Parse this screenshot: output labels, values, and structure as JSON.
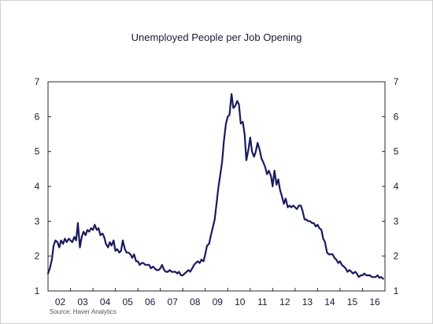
{
  "chart_data": {
    "type": "line",
    "title": "Unemployed People per Job Opening",
    "source": "Source:   Haver Analytics",
    "xlabel": "",
    "ylabel": "",
    "ylim": [
      1,
      7
    ],
    "yticks": [
      "1",
      "2",
      "3",
      "4",
      "5",
      "6",
      "7"
    ],
    "y_axes": "both",
    "grid": false,
    "legend": "none",
    "line_color": "#1a1a5e",
    "xlim": [
      2001,
      2016
    ],
    "xticks": [
      {
        "label": "02",
        "x": 2002
      },
      {
        "label": "03",
        "x": 2003
      },
      {
        "label": "04",
        "x": 2004
      },
      {
        "label": "05",
        "x": 2005
      },
      {
        "label": "06",
        "x": 2006
      },
      {
        "label": "07",
        "x": 2007
      },
      {
        "label": "08",
        "x": 2008
      },
      {
        "label": "09",
        "x": 2009
      },
      {
        "label": "10",
        "x": 2010
      },
      {
        "label": "11",
        "x": 2011
      },
      {
        "label": "12",
        "x": 2012
      },
      {
        "label": "13",
        "x": 2013
      },
      {
        "label": "14",
        "x": 2014
      },
      {
        "label": "15",
        "x": 2015
      },
      {
        "label": "16",
        "x": 2016
      }
    ],
    "series": [
      {
        "x": [
          2001.0,
          2001.08,
          2001.17,
          2001.25,
          2001.33,
          2001.42,
          2001.5,
          2001.58,
          2001.67,
          2001.75,
          2001.83,
          2001.92,
          2002.0,
          2002.08,
          2002.17,
          2002.25,
          2002.33,
          2002.42,
          2002.5,
          2002.58,
          2002.67,
          2002.75,
          2002.83,
          2002.92,
          2003.0,
          2003.08,
          2003.17,
          2003.25,
          2003.33,
          2003.42,
          2003.5,
          2003.58,
          2003.67,
          2003.75,
          2003.83,
          2003.92,
          2004.0,
          2004.08,
          2004.17,
          2004.25,
          2004.33,
          2004.42,
          2004.5,
          2004.58,
          2004.67,
          2004.75,
          2004.83,
          2004.92,
          2005.0,
          2005.08,
          2005.17,
          2005.25,
          2005.33,
          2005.42,
          2005.5,
          2005.58,
          2005.67,
          2005.75,
          2005.83,
          2005.92,
          2006.0,
          2006.08,
          2006.17,
          2006.25,
          2006.33,
          2006.42,
          2006.5,
          2006.58,
          2006.67,
          2006.75,
          2006.83,
          2006.92,
          2007.0,
          2007.08,
          2007.17,
          2007.25,
          2007.33,
          2007.42,
          2007.5,
          2007.58,
          2007.67,
          2007.75,
          2007.83,
          2007.92,
          2008.0,
          2008.08,
          2008.17,
          2008.25,
          2008.33,
          2008.42,
          2008.5,
          2008.58,
          2008.67,
          2008.75,
          2008.83,
          2008.92,
          2009.0,
          2009.08,
          2009.17,
          2009.25,
          2009.33,
          2009.42,
          2009.5,
          2009.58,
          2009.67,
          2009.75,
          2009.83,
          2009.92,
          2010.0,
          2010.08,
          2010.17,
          2010.25,
          2010.33,
          2010.42,
          2010.5,
          2010.58,
          2010.67,
          2010.75,
          2010.83,
          2010.92,
          2011.0,
          2011.08,
          2011.17,
          2011.25,
          2011.33,
          2011.42,
          2011.5,
          2011.58,
          2011.67,
          2011.75,
          2011.83,
          2011.92,
          2012.0,
          2012.08,
          2012.17,
          2012.25,
          2012.33,
          2012.42,
          2012.5,
          2012.58,
          2012.67,
          2012.75,
          2012.83,
          2012.92,
          2013.0,
          2013.08,
          2013.17,
          2013.25,
          2013.33,
          2013.42,
          2013.5,
          2013.58,
          2013.67,
          2013.75,
          2013.83,
          2013.92,
          2014.0,
          2014.08,
          2014.17,
          2014.25,
          2014.33,
          2014.42,
          2014.5,
          2014.58,
          2014.67,
          2014.75,
          2014.83,
          2014.92,
          2015.0,
          2015.08,
          2015.17,
          2015.25,
          2015.33,
          2015.42,
          2015.5,
          2015.58,
          2015.67,
          2015.75,
          2015.83,
          2015.92
        ],
        "values": [
          1.5,
          1.65,
          1.9,
          2.3,
          2.45,
          2.4,
          2.25,
          2.45,
          2.35,
          2.5,
          2.4,
          2.5,
          2.45,
          2.4,
          2.55,
          2.45,
          2.95,
          2.25,
          2.55,
          2.7,
          2.6,
          2.75,
          2.7,
          2.8,
          2.75,
          2.9,
          2.75,
          2.8,
          2.6,
          2.65,
          2.55,
          2.35,
          2.25,
          2.4,
          2.3,
          2.45,
          2.15,
          2.2,
          2.1,
          2.15,
          2.45,
          2.2,
          2.1,
          2.1,
          2.05,
          1.95,
          2.05,
          1.85,
          1.85,
          1.75,
          1.8,
          1.8,
          1.75,
          1.75,
          1.75,
          1.65,
          1.7,
          1.65,
          1.6,
          1.6,
          1.65,
          1.75,
          1.6,
          1.55,
          1.55,
          1.6,
          1.55,
          1.55,
          1.55,
          1.5,
          1.55,
          1.45,
          1.45,
          1.5,
          1.55,
          1.6,
          1.55,
          1.65,
          1.75,
          1.8,
          1.85,
          1.8,
          1.9,
          1.85,
          2.05,
          2.3,
          2.35,
          2.6,
          2.8,
          3.05,
          3.5,
          3.95,
          4.35,
          4.7,
          5.3,
          5.8,
          6.0,
          6.05,
          6.65,
          6.25,
          6.3,
          6.45,
          6.35,
          5.8,
          5.85,
          5.5,
          4.75,
          5.05,
          5.4,
          5.0,
          4.85,
          5.0,
          5.25,
          5.05,
          4.8,
          4.7,
          4.55,
          4.35,
          4.45,
          4.3,
          4.0,
          4.45,
          4.05,
          4.2,
          3.9,
          3.7,
          3.5,
          3.65,
          3.4,
          3.45,
          3.4,
          3.45,
          3.4,
          3.35,
          3.45,
          3.45,
          3.3,
          3.05,
          3.05,
          3.0,
          3.0,
          2.95,
          2.95,
          2.85,
          2.9,
          2.8,
          2.75,
          2.5,
          2.4,
          2.1,
          2.05,
          2.05,
          2.05,
          1.95,
          1.9,
          1.8,
          1.85,
          1.75,
          1.7,
          1.65,
          1.55,
          1.6,
          1.55,
          1.5,
          1.55,
          1.5,
          1.4,
          1.45,
          1.45,
          1.5,
          1.45,
          1.45,
          1.45,
          1.4,
          1.4,
          1.4,
          1.45,
          1.38,
          1.4,
          1.35
        ]
      }
    ]
  }
}
